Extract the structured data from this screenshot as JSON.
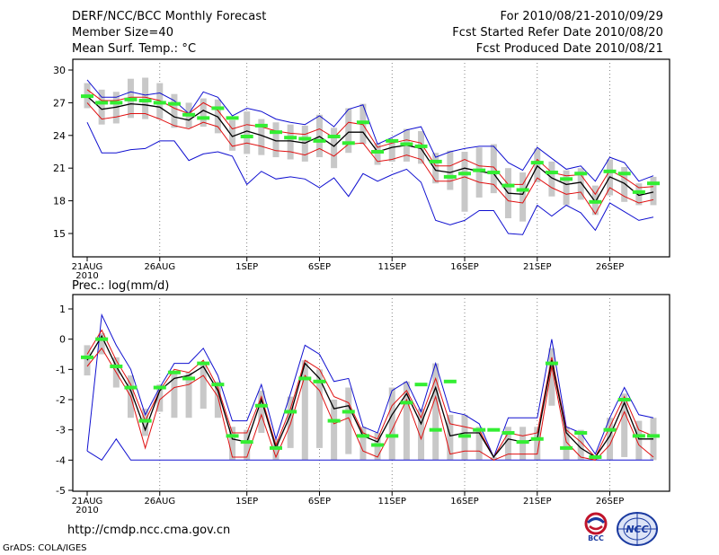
{
  "header": {
    "left": [
      "DERF/NCC/BCC Monthly Forecast",
      "Member Size=40",
      "Mean Surf. Temp.: °C"
    ],
    "right": [
      "For 2010/08/21-2010/09/29",
      "Fcst Started Refer Date 2010/08/20",
      "Fcst Produced Date 2010/08/21"
    ]
  },
  "footer": {
    "url": "http://cmdp.ncc.cma.gov.cn",
    "credit": "GrADS: COLA/IGES",
    "logo_left_text": "BCC",
    "logo_right_text": "NCC"
  },
  "colors": {
    "box": "#c8c8c8",
    "mean": "#000000",
    "envelope_inner": "#e01010",
    "envelope_outer": "#1010d0",
    "obs": "#33ee33",
    "grid": "#666666"
  },
  "chart_data": [
    {
      "type": "line",
      "title": "Mean Surf. Temp.: °C",
      "ylabel": "°C",
      "ylim": [
        13,
        30.5
      ],
      "yticks": [
        15,
        18,
        21,
        24,
        27,
        30
      ],
      "x_tick_labels": [
        "21AUG",
        "26AUG",
        "1SEP",
        "6SEP",
        "11SEP",
        "16SEP",
        "21SEP",
        "26SEP"
      ],
      "x_tick_index": [
        0,
        5,
        11,
        16,
        21,
        26,
        31,
        36
      ],
      "x_sub_label": "2010",
      "series": [
        {
          "name": "max",
          "values": [
            29.1,
            27.5,
            27.5,
            28.0,
            27.7,
            27.9,
            27.2,
            26.0,
            28.0,
            27.5,
            25.8,
            26.5,
            26.2,
            25.5,
            25.2,
            25.0,
            25.8,
            24.8,
            26.4,
            26.8,
            23.2,
            23.8,
            24.5,
            24.8,
            22.0,
            22.5,
            22.8,
            23.0,
            23.0,
            21.5,
            20.8,
            22.9,
            21.9,
            20.9,
            21.2,
            19.8,
            22.0,
            21.5,
            19.8,
            20.3
          ]
        },
        {
          "name": "upper",
          "values": [
            28.2,
            27.2,
            27.2,
            27.5,
            27.5,
            27.2,
            26.5,
            26.0,
            27.0,
            26.3,
            24.6,
            25.0,
            24.8,
            24.4,
            24.2,
            24.1,
            24.6,
            23.8,
            25.2,
            25.0,
            22.9,
            23.3,
            23.6,
            23.3,
            21.2,
            21.2,
            21.8,
            21.2,
            21.1,
            19.5,
            19.5,
            21.8,
            20.6,
            20.3,
            20.4,
            18.6,
            20.8,
            20.1,
            19.2,
            19.3
          ]
        },
        {
          "name": "mean",
          "values": [
            27.6,
            26.4,
            26.6,
            26.9,
            26.8,
            26.6,
            25.7,
            25.4,
            26.3,
            25.7,
            23.9,
            24.4,
            24.0,
            23.5,
            23.5,
            23.3,
            23.9,
            23.0,
            24.3,
            24.3,
            22.5,
            22.9,
            23.1,
            22.8,
            20.8,
            20.6,
            21.0,
            20.7,
            20.5,
            18.7,
            18.6,
            21.2,
            20.1,
            19.5,
            19.7,
            17.9,
            20.2,
            19.6,
            18.5,
            18.8
          ]
        },
        {
          "name": "lower",
          "values": [
            27.0,
            25.5,
            25.7,
            26.0,
            26.0,
            25.5,
            24.9,
            24.6,
            25.2,
            24.8,
            23.0,
            23.3,
            23.0,
            22.6,
            22.5,
            22.2,
            22.8,
            22.1,
            23.2,
            23.3,
            21.6,
            21.8,
            22.2,
            21.8,
            19.8,
            19.8,
            20.2,
            19.7,
            19.5,
            18.0,
            17.8,
            20.1,
            19.2,
            18.6,
            18.8,
            16.8,
            19.2,
            18.4,
            17.8,
            18.1
          ]
        },
        {
          "name": "min",
          "values": [
            25.2,
            22.4,
            22.4,
            22.7,
            22.8,
            23.5,
            23.5,
            21.7,
            22.3,
            22.5,
            22.1,
            19.5,
            20.7,
            20.0,
            20.2,
            20.0,
            19.2,
            20.1,
            18.4,
            20.5,
            19.8,
            20.4,
            20.9,
            19.7,
            16.2,
            15.8,
            16.2,
            17.1,
            17.1,
            15.0,
            14.9,
            17.6,
            16.6,
            17.6,
            16.9,
            15.3,
            17.8,
            17.0,
            16.2,
            16.5
          ]
        },
        {
          "name": "box_top",
          "values": [
            28.8,
            28.2,
            28.0,
            29.2,
            29.3,
            28.8,
            27.8,
            27.0,
            27.4,
            27.3,
            25.4,
            26.2,
            25.5,
            25.2,
            25.0,
            24.9,
            25.9,
            24.7,
            26.5,
            26.9,
            23.3,
            23.6,
            24.6,
            24.4,
            22.4,
            22.6,
            22.5,
            22.9,
            23.2,
            21.0,
            20.6,
            22.8,
            21.6,
            20.8,
            21.0,
            19.4,
            21.8,
            21.1,
            19.6,
            20.2
          ]
        },
        {
          "name": "box_bottom",
          "values": [
            26.5,
            25.0,
            25.1,
            25.6,
            25.5,
            25.5,
            24.7,
            24.7,
            24.8,
            24.2,
            22.6,
            22.3,
            22.2,
            22.0,
            21.8,
            21.6,
            22.0,
            21.0,
            22.4,
            23.2,
            21.3,
            21.6,
            21.6,
            21.4,
            19.6,
            19.0,
            17.0,
            18.3,
            18.7,
            16.4,
            16.1,
            19.7,
            18.4,
            17.6,
            18.1,
            16.7,
            18.5,
            17.9,
            17.6,
            17.6
          ]
        },
        {
          "name": "observed",
          "values": [
            27.6,
            27.0,
            27.0,
            27.3,
            27.2,
            27.0,
            26.9,
            25.9,
            25.6,
            26.5,
            25.6,
            23.9,
            24.9,
            24.3,
            23.8,
            23.7,
            23.5,
            23.9,
            23.3,
            25.2,
            22.5,
            23.5,
            23.2,
            23.0,
            21.6,
            20.2,
            20.5,
            20.8,
            20.6,
            19.4,
            19.0,
            21.5,
            20.6,
            20.0,
            20.5,
            17.9,
            20.7,
            20.5,
            18.8,
            19.6
          ]
        }
      ]
    },
    {
      "type": "line",
      "title": "Prec.: log(mm/d)",
      "ylabel": "log(mm/d)",
      "ylim": [
        -5,
        1.3
      ],
      "yticks": [
        -5,
        -4,
        -3,
        -2,
        -1,
        0,
        1
      ],
      "x_tick_labels": [
        "21AUG",
        "26AUG",
        "1SEP",
        "6SEP",
        "11SEP",
        "16SEP",
        "21SEP",
        "26SEP"
      ],
      "x_tick_index": [
        0,
        5,
        11,
        16,
        21,
        26,
        31,
        36
      ],
      "x_sub_label": "2010",
      "series": [
        {
          "name": "max",
          "values": [
            -3.7,
            0.8,
            -0.2,
            -1.0,
            -2.5,
            -1.6,
            -0.8,
            -0.8,
            -0.3,
            -1.2,
            -2.7,
            -2.7,
            -1.5,
            -3.3,
            -1.8,
            -0.2,
            -0.5,
            -1.4,
            -1.3,
            -2.9,
            -3.1,
            -1.7,
            -1.4,
            -2.4,
            -0.8,
            -2.4,
            -2.5,
            -2.8,
            -3.9,
            -2.6,
            -2.6,
            -2.6,
            0.0,
            -2.9,
            -3.1,
            -3.8,
            -2.6,
            -1.6,
            -2.5,
            -2.6
          ]
        },
        {
          "name": "upper",
          "values": [
            -0.5,
            0.3,
            -0.7,
            -1.5,
            -2.7,
            -1.7,
            -1.0,
            -1.1,
            -0.7,
            -1.6,
            -3.1,
            -3.1,
            -1.9,
            -3.5,
            -2.3,
            -0.7,
            -1.0,
            -1.9,
            -2.1,
            -3.1,
            -3.3,
            -2.2,
            -1.7,
            -2.6,
            -1.3,
            -2.8,
            -2.9,
            -3.0,
            -3.9,
            -3.1,
            -3.2,
            -3.1,
            -0.6,
            -3.0,
            -3.4,
            -3.9,
            -2.9,
            -1.9,
            -3.0,
            -3.2
          ]
        },
        {
          "name": "mean",
          "values": [
            -0.7,
            0.1,
            -0.9,
            -1.7,
            -3.0,
            -1.7,
            -1.3,
            -1.2,
            -0.9,
            -1.7,
            -3.3,
            -3.4,
            -2.0,
            -3.6,
            -2.5,
            -0.8,
            -1.3,
            -2.3,
            -2.2,
            -3.2,
            -3.4,
            -2.5,
            -1.8,
            -2.8,
            -1.6,
            -3.2,
            -3.1,
            -3.1,
            -3.9,
            -3.3,
            -3.4,
            -3.3,
            -0.7,
            -3.1,
            -3.6,
            -3.9,
            -3.2,
            -2.1,
            -3.3,
            -3.3
          ]
        },
        {
          "name": "lower",
          "values": [
            -0.9,
            -0.3,
            -1.1,
            -1.9,
            -3.6,
            -2.0,
            -1.6,
            -1.5,
            -1.2,
            -1.9,
            -3.9,
            -3.9,
            -2.5,
            -3.9,
            -2.8,
            -1.2,
            -1.7,
            -2.8,
            -2.6,
            -3.7,
            -3.9,
            -3.0,
            -2.0,
            -3.3,
            -1.9,
            -3.8,
            -3.7,
            -3.7,
            -4.0,
            -3.8,
            -3.8,
            -3.8,
            -0.9,
            -3.4,
            -3.9,
            -4.0,
            -3.5,
            -2.4,
            -3.5,
            -3.9
          ]
        },
        {
          "name": "min",
          "values": [
            -3.7,
            -4.0,
            -3.3,
            -4.0,
            -4.0,
            -4.0,
            -4.0,
            -4.0,
            -4.0,
            -4.0,
            -4.0,
            -4.0,
            -4.0,
            -4.0,
            -4.0,
            -4.0,
            -4.0,
            -4.0,
            -4.0,
            -4.0,
            -4.0,
            -4.0,
            -4.0,
            -4.0,
            -4.0,
            -4.0,
            -4.0,
            -4.0,
            -4.0,
            -4.0,
            -4.0,
            -4.0,
            -4.0,
            -4.0,
            -4.0,
            -4.0,
            -4.0,
            -4.0,
            -4.0,
            -4.0
          ]
        },
        {
          "name": "box_top",
          "values": [
            -0.2,
            0.2,
            -0.6,
            -1.2,
            -2.3,
            -1.5,
            -1.1,
            -1.1,
            -0.8,
            -1.4,
            -2.9,
            -3.0,
            -1.7,
            -3.3,
            -1.9,
            -0.7,
            -1.0,
            -2.0,
            -1.6,
            -2.9,
            -3.1,
            -1.6,
            -1.4,
            -2.3,
            -0.8,
            -2.5,
            -2.5,
            -2.9,
            -3.9,
            -2.9,
            -2.9,
            -2.9,
            -0.3,
            -2.9,
            -3.0,
            -3.9,
            -2.6,
            -1.8,
            -2.7,
            -2.6
          ]
        },
        {
          "name": "box_bottom",
          "values": [
            -1.2,
            -0.5,
            -1.6,
            -2.6,
            -3.2,
            -2.4,
            -2.6,
            -2.6,
            -2.3,
            -2.6,
            -4.0,
            -4.0,
            -3.1,
            -4.0,
            -3.6,
            -4.0,
            -3.6,
            -4.0,
            -3.8,
            -4.0,
            -4.0,
            -4.0,
            -4.0,
            -4.0,
            -4.0,
            -4.0,
            -4.0,
            -4.0,
            -4.0,
            -4.0,
            -4.0,
            -4.0,
            -2.2,
            -4.0,
            -4.0,
            -4.0,
            -4.0,
            -3.9,
            -4.0,
            -4.0
          ]
        },
        {
          "name": "observed",
          "values": [
            -0.6,
            0.0,
            -0.9,
            -1.6,
            -2.7,
            -1.6,
            -1.1,
            -1.3,
            -0.8,
            -1.5,
            -3.2,
            -3.4,
            -2.2,
            -3.6,
            -2.4,
            -1.3,
            -1.4,
            -2.7,
            -2.4,
            -3.2,
            -3.5,
            -3.2,
            -2.1,
            -1.5,
            -3.0,
            -1.4,
            -3.2,
            -3.0,
            -3.0,
            -3.1,
            -3.4,
            -3.3,
            -0.8,
            -3.6,
            -3.1,
            -3.9,
            -3.0,
            -2.0,
            -3.2,
            -3.2
          ]
        }
      ]
    }
  ]
}
